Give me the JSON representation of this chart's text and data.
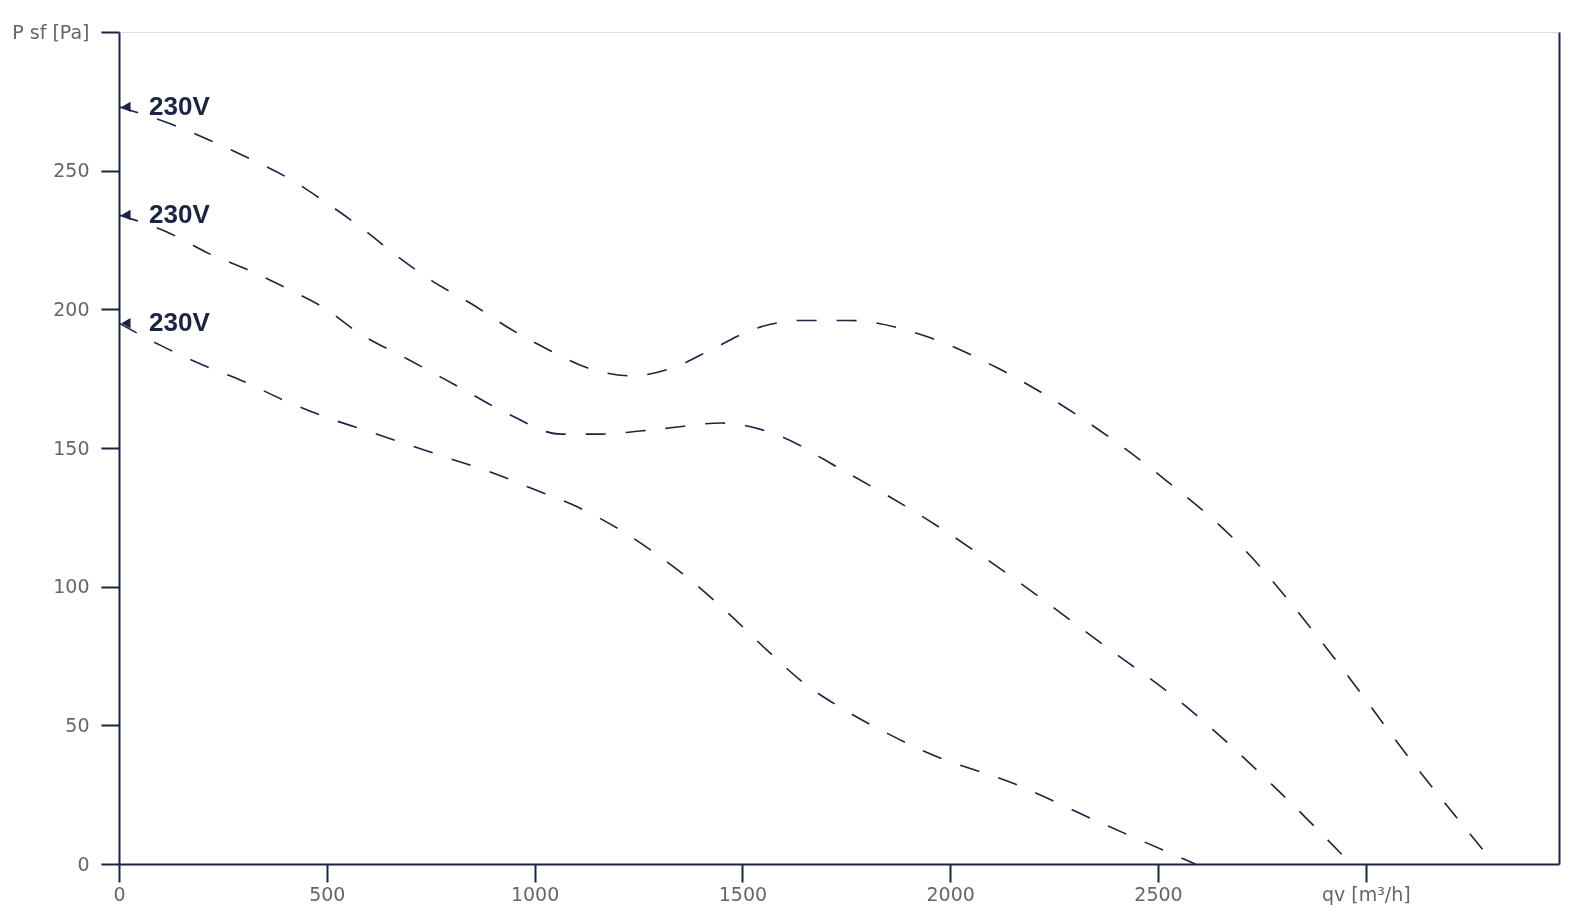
{
  "chart_data": {
    "type": "line",
    "line_style": "dashed",
    "xlim": [
      0,
      3465
    ],
    "ylim": [
      0,
      300
    ],
    "xticks": [
      0,
      500,
      1000,
      1500,
      2000,
      2500,
      {
        "value": 3000,
        "label": "qv [m³/h]"
      }
    ],
    "yticks": [
      0,
      50,
      100,
      150,
      200,
      250,
      {
        "value": 300,
        "label": "P sf [Pa]"
      }
    ],
    "annotations": [
      "230V",
      "230V",
      "230V"
    ],
    "series": [
      {
        "color": "#1b2440",
        "x": [
          0,
          122,
          218,
          319,
          411,
          503,
          587,
          671,
          756,
          848,
          941,
          1039,
          1125,
          1235,
          1334,
          1432,
          1530,
          1645,
          1755,
          1947,
          2112,
          2304,
          2497,
          2704,
          2910,
          3116,
          3310
        ],
        "values": [
          273,
          267,
          261,
          254,
          247,
          238,
          229,
          219,
          210,
          202,
          193,
          185,
          179,
          176,
          179,
          186,
          193,
          196,
          196,
          190,
          179,
          162,
          141,
          114,
          77,
          36,
          0
        ]
      },
      {
        "color": "#1b2440",
        "x": [
          0,
          114,
          218,
          314,
          411,
          499,
          572,
          695,
          818,
          940,
          1063,
          1149,
          1309,
          1450,
          1579,
          1741,
          1947,
          2153,
          2360,
          2566,
          2772,
          2965
        ],
        "values": [
          234,
          228,
          220,
          214,
          207,
          200,
          192,
          182,
          172,
          162,
          155,
          155,
          157,
          159,
          155,
          142,
          124,
          103,
          80,
          57,
          29,
          0
        ]
      },
      {
        "color": "#1b2440",
        "x": [
          0,
          100,
          200,
          300,
          400,
          500,
          600,
          700,
          800,
          900,
          1000,
          1100,
          1200,
          1300,
          1370,
          1469,
          1560,
          1650,
          1741,
          1850,
          1947,
          2153,
          2360,
          2590
        ],
        "values": [
          195,
          187,
          180,
          174,
          167,
          161,
          156,
          151,
          146,
          141,
          135,
          129,
          121,
          111,
          103,
          90,
          77,
          65,
          56,
          47,
          40,
          29,
          15,
          0
        ]
      }
    ]
  }
}
